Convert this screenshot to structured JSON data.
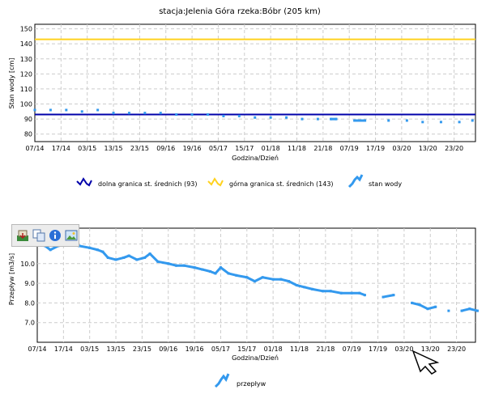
{
  "top_title": "stacja:Jelenia Góra   rzeka:Bóbr (205 km)",
  "chart_data": [
    {
      "type": "line",
      "title": "stacja:Jelenia Góra   rzeka:Bóbr (205 km)",
      "xlabel": "Godzina/Dzień",
      "ylabel": "Stan wody [cm]",
      "ylim": [
        75,
        153
      ],
      "yticks": [
        80,
        90,
        100,
        110,
        120,
        130,
        140,
        150
      ],
      "xticks": [
        "07/14",
        "17/14",
        "03/15",
        "13/15",
        "23/15",
        "09/16",
        "19/16",
        "05/17",
        "15/17",
        "01/18",
        "11/18",
        "21/18",
        "07/19",
        "17/19",
        "03/20",
        "13/20",
        "23/20"
      ],
      "grid": true,
      "legend_position": "bottom",
      "series": [
        {
          "name": "dolna granica st. średnich (93)",
          "color": "#0000aa",
          "values": [
            93,
            93
          ]
        },
        {
          "name": "górna granica st. średnich (143)",
          "color": "#ffd21e",
          "values": [
            143,
            143
          ]
        },
        {
          "name": "stan wody",
          "color": "#3399ee",
          "points": [
            [
              0,
              96
            ],
            [
              0.6,
              96
            ],
            [
              1.2,
              96
            ],
            [
              1.8,
              95
            ],
            [
              2.4,
              96
            ],
            [
              3.0,
              94
            ],
            [
              3.6,
              94
            ],
            [
              4.2,
              94
            ],
            [
              4.8,
              94
            ],
            [
              5.4,
              93
            ],
            [
              6.0,
              93
            ],
            [
              6.6,
              93
            ],
            [
              7.2,
              92
            ],
            [
              7.8,
              92
            ],
            [
              8.4,
              91
            ],
            [
              9.0,
              91
            ],
            [
              9.6,
              91
            ],
            [
              10.2,
              90
            ],
            [
              10.8,
              90
            ],
            [
              11.3,
              90
            ],
            [
              11.5,
              90
            ],
            [
              12.2,
              89
            ],
            [
              12.6,
              89
            ],
            [
              13.5,
              89
            ],
            [
              14.2,
              89
            ],
            [
              14.8,
              88
            ],
            [
              15.5,
              88
            ],
            [
              16.2,
              88
            ],
            [
              16.7,
              89
            ]
          ]
        }
      ]
    },
    {
      "type": "line",
      "xlabel": "Godzina/Dzień",
      "ylabel": "Przepływ [m3/s]",
      "ylim": [
        6.0,
        11.8
      ],
      "yticks": [
        7.0,
        8.0,
        9.0,
        10.0,
        11.0
      ],
      "xticks": [
        "07/14",
        "17/14",
        "03/15",
        "13/15",
        "23/15",
        "09/16",
        "19/16",
        "05/17",
        "15/17",
        "01/18",
        "11/18",
        "21/18",
        "07/19",
        "17/19",
        "03/20",
        "13/20",
        "23/20"
      ],
      "grid": true,
      "legend_position": "bottom",
      "series": [
        {
          "name": "przepływ",
          "color": "#3399ee",
          "points": [
            [
              0,
              11.0
            ],
            [
              0.3,
              10.9
            ],
            [
              0.5,
              10.7
            ],
            [
              0.8,
              10.9
            ],
            [
              1.2,
              11.0
            ],
            [
              1.6,
              10.9
            ],
            [
              2.0,
              10.8
            ],
            [
              2.3,
              10.7
            ],
            [
              2.5,
              10.6
            ],
            [
              2.7,
              10.3
            ],
            [
              3.0,
              10.2
            ],
            [
              3.3,
              10.3
            ],
            [
              3.5,
              10.4
            ],
            [
              3.8,
              10.2
            ],
            [
              4.1,
              10.3
            ],
            [
              4.3,
              10.5
            ],
            [
              4.6,
              10.1
            ],
            [
              5.0,
              10.0
            ],
            [
              5.3,
              9.9
            ],
            [
              5.6,
              9.9
            ],
            [
              6.0,
              9.8
            ],
            [
              6.3,
              9.7
            ],
            [
              6.6,
              9.6
            ],
            [
              6.8,
              9.5
            ],
            [
              7.0,
              9.8
            ],
            [
              7.3,
              9.5
            ],
            [
              7.6,
              9.4
            ],
            [
              8.0,
              9.3
            ],
            [
              8.3,
              9.1
            ],
            [
              8.6,
              9.3
            ],
            [
              9.0,
              9.2
            ],
            [
              9.3,
              9.2
            ],
            [
              9.6,
              9.1
            ],
            [
              9.9,
              8.9
            ],
            [
              10.2,
              8.8
            ],
            [
              10.5,
              8.7
            ],
            [
              10.9,
              8.6
            ],
            [
              11.2,
              8.6
            ],
            [
              11.6,
              8.5
            ],
            [
              12.0,
              8.5
            ],
            [
              12.3,
              8.5
            ],
            [
              12.5,
              8.4
            ],
            [
              13.2,
              8.3
            ],
            [
              13.6,
              8.4
            ],
            [
              14.3,
              8.0
            ],
            [
              14.6,
              7.9
            ],
            [
              14.9,
              7.7
            ],
            [
              15.2,
              7.8
            ],
            [
              15.7,
              7.6
            ],
            [
              16.2,
              7.6
            ],
            [
              16.5,
              7.7
            ],
            [
              16.8,
              7.6
            ]
          ]
        }
      ]
    }
  ],
  "toolbar": {
    "icons": [
      "save-icon",
      "copy-icon",
      "info-icon",
      "image-icon"
    ]
  }
}
